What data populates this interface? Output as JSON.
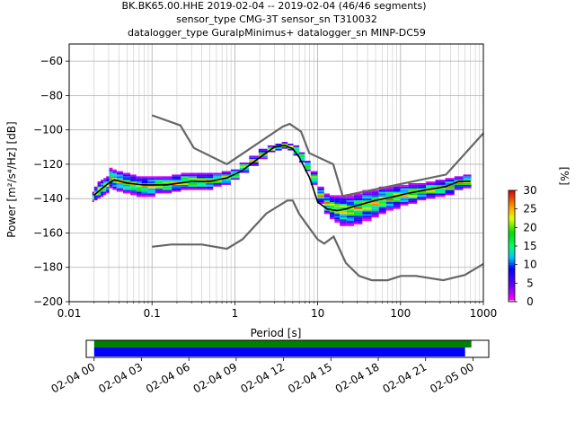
{
  "chart_data": [
    {
      "type": "heatmap",
      "title_lines": [
        "BK.BK65.00.HHE   2019-02-04 -- 2019-02-04  (46/46 segments)",
        "sensor_type CMG-3T sensor_sn T310032",
        "datalogger_type GuralpMinimus+ datalogger_sn MINP-DC59"
      ],
      "xlabel": "Period [s]",
      "ylabel": "Power [m²/s⁴/Hz] [dB]",
      "xscale": "log",
      "xlim": [
        0.01,
        1000
      ],
      "ylim": [
        -200,
        -50
      ],
      "grid": true,
      "xticks": [
        {
          "value": 0.01,
          "label": "0.01"
        },
        {
          "value": 0.1,
          "label": "0.1"
        },
        {
          "value": 1,
          "label": "1"
        },
        {
          "value": 10,
          "label": "10"
        },
        {
          "value": 100,
          "label": "100"
        },
        {
          "value": 1000,
          "label": "1000"
        }
      ],
      "yticks": [
        {
          "value": -60,
          "label": "−60"
        },
        {
          "value": -80,
          "label": "−80"
        },
        {
          "value": -100,
          "label": "−100"
        },
        {
          "value": -120,
          "label": "−120"
        },
        {
          "value": -140,
          "label": "−140"
        },
        {
          "value": -160,
          "label": "−160"
        },
        {
          "value": -180,
          "label": "−180"
        },
        {
          "value": -200,
          "label": "−200"
        }
      ],
      "colorbar": {
        "label": "[%]",
        "range": [
          0,
          30
        ],
        "ticks": [
          {
            "value": 0,
            "label": "0"
          },
          {
            "value": 5,
            "label": "5"
          },
          {
            "value": 10,
            "label": "10"
          },
          {
            "value": 15,
            "label": "15"
          },
          {
            "value": 20,
            "label": "20"
          },
          {
            "value": 25,
            "label": "25"
          },
          {
            "value": 30,
            "label": "30"
          }
        ]
      },
      "series": [
        {
          "name": "",
          "role": "mean",
          "color": "#000000",
          "x": [
            0.02,
            0.025,
            0.03,
            0.035,
            0.05,
            0.08,
            0.15,
            0.3,
            0.5,
            0.8,
            1.2,
            2,
            3,
            4,
            5,
            6,
            8,
            10,
            13,
            17,
            22,
            30,
            50,
            80,
            120,
            200,
            350,
            500,
            700
          ],
          "y": [
            -138,
            -134,
            -131,
            -129,
            -131,
            -132,
            -132,
            -130,
            -130,
            -128,
            -124,
            -116,
            -110,
            -109,
            -111,
            -116,
            -128,
            -142,
            -146,
            -147,
            -146,
            -144,
            -141,
            -139,
            -137,
            -135,
            -133,
            -130,
            -130
          ]
        },
        {
          "name": "",
          "role": "high-noise-model",
          "color": "#666666",
          "x": [
            0.1,
            0.22,
            0.32,
            0.8,
            3.8,
            4.6,
            6.3,
            7.9,
            15.4,
            20,
            354.8,
            10000
          ],
          "y": [
            -91.5,
            -97.4,
            -110.5,
            -120,
            -98,
            -96.5,
            -101,
            -113.5,
            -120,
            -138.5,
            -126,
            -48.5
          ]
        },
        {
          "name": "",
          "role": "low-noise-model",
          "color": "#666666",
          "x": [
            0.1,
            0.17,
            0.4,
            0.8,
            1.24,
            2.4,
            4.3,
            5,
            6,
            10,
            12,
            15.6,
            21.9,
            31.6,
            45,
            70,
            101,
            154,
            328,
            600,
            1000
          ],
          "y": [
            -168,
            -166.7,
            -166.7,
            -169.2,
            -163.7,
            -148.6,
            -141.1,
            -141.1,
            -149,
            -163.8,
            -166.2,
            -162.1,
            -177.5,
            -185,
            -187.5,
            -187.5,
            -185,
            -185,
            -187.5,
            -184.4,
            -178
          ]
        }
      ],
      "density": {
        "x": [
          0.019,
          0.021,
          0.023,
          0.025,
          0.027,
          0.029,
          0.032,
          0.035,
          0.04,
          0.05,
          0.06,
          0.07,
          0.08,
          0.1,
          0.12,
          0.15,
          0.2,
          0.25,
          0.3,
          0.4,
          0.5,
          0.6,
          0.8,
          1,
          1.3,
          1.7,
          2.2,
          2.8,
          3.4,
          4,
          4.7,
          5.5,
          6.5,
          7.5,
          9,
          11,
          13,
          15,
          17,
          20,
          25,
          30,
          40,
          50,
          60,
          75,
          90,
          110,
          140,
          180,
          230,
          300,
          400,
          500,
          650
        ],
        "center": [
          -139,
          -137,
          -135,
          -134,
          -133,
          -132,
          -128,
          -129,
          -130,
          -131,
          -132,
          -133,
          -133,
          -133,
          -132,
          -132,
          -131,
          -130,
          -130,
          -130,
          -130,
          -129,
          -128,
          -126,
          -122,
          -118,
          -114,
          -111,
          -110,
          -109,
          -110,
          -112,
          -116,
          -121,
          -128,
          -138,
          -143,
          -145,
          -146,
          -147,
          -147,
          -146,
          -144,
          -143,
          -141,
          -140,
          -139,
          -138,
          -137,
          -136,
          -135,
          -134,
          -133,
          -131,
          -130
        ],
        "spread": [
          3,
          4,
          5,
          5,
          5,
          5,
          6,
          6,
          6,
          6,
          6,
          6,
          6,
          6,
          5,
          5,
          5,
          5,
          5,
          5,
          5,
          4,
          4,
          3,
          3,
          3,
          3,
          2,
          2,
          2,
          2,
          3,
          3,
          3,
          4,
          5,
          6,
          7,
          8,
          9,
          9,
          9,
          9,
          8,
          8,
          7,
          7,
          6,
          6,
          5,
          5,
          5,
          5,
          4,
          4
        ]
      }
    },
    {
      "type": "timeline",
      "xticks": [
        "02-04 00",
        "02-04 03",
        "02-04 06",
        "02-04 09",
        "02-04 12",
        "02-04 15",
        "02-04 18",
        "02-04 21",
        "02-05 00"
      ],
      "xrange_hours": [
        -0.5,
        25
      ],
      "bars": [
        {
          "role": "data",
          "color": "#008000",
          "start_hours": 0,
          "end_hours": 23.9
        },
        {
          "role": "used",
          "color": "#0000ff",
          "start_hours": 0,
          "end_hours": 23.5
        }
      ]
    }
  ]
}
